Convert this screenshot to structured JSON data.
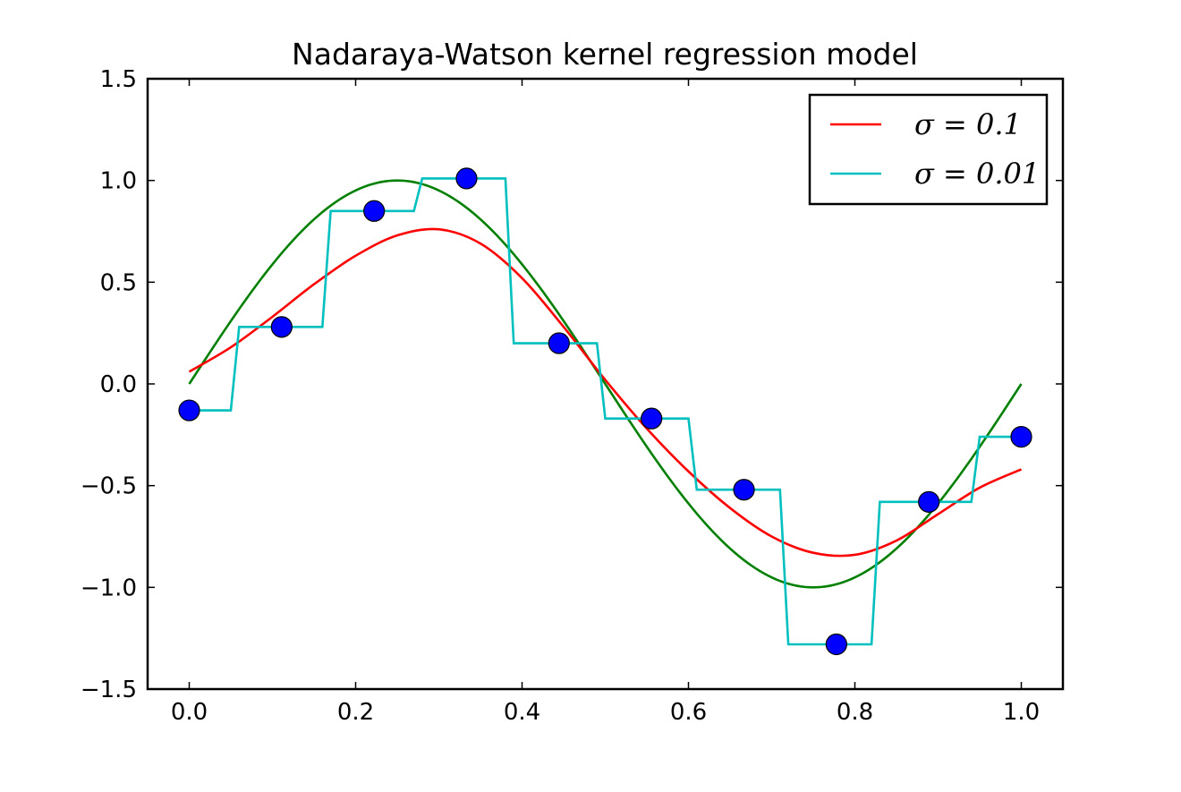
{
  "chart_data": {
    "type": "line",
    "title": "Nadaraya-Watson kernel regression model",
    "xlabel": "",
    "ylabel": "",
    "xlim": [
      -0.05,
      1.05
    ],
    "ylim": [
      -1.5,
      1.5
    ],
    "x_ticks": [
      0.0,
      0.2,
      0.4,
      0.6,
      0.8,
      1.0
    ],
    "x_tick_labels": [
      "0.0",
      "0.2",
      "0.4",
      "0.6",
      "0.8",
      "1.0"
    ],
    "y_ticks": [
      1.5,
      1.0,
      0.5,
      0.0,
      -0.5,
      -1.0,
      -1.5
    ],
    "y_tick_labels": [
      "1.5",
      "1.0",
      "0.5",
      "0.0",
      "−0.5",
      "−1.0",
      "−1.5"
    ],
    "grid": false,
    "legend_position": "top-right",
    "points": {
      "color": "#0000ff",
      "x": [
        0.0,
        0.1111,
        0.2222,
        0.3333,
        0.4444,
        0.5556,
        0.6667,
        0.7778,
        0.8889,
        1.0
      ],
      "y": [
        -0.13,
        0.28,
        0.85,
        1.01,
        0.2,
        -0.17,
        -0.52,
        -1.28,
        -0.58,
        -0.26
      ]
    },
    "series": [
      {
        "name": "σ = 0.1",
        "color": "#ff0000",
        "x": [
          0.0,
          0.05,
          0.1,
          0.15,
          0.2,
          0.25,
          0.3,
          0.35,
          0.4,
          0.45,
          0.5,
          0.55,
          0.6,
          0.65,
          0.7,
          0.75,
          0.8,
          0.85,
          0.9,
          0.95,
          1.0
        ],
        "y": [
          0.06,
          0.18,
          0.33,
          0.49,
          0.63,
          0.73,
          0.76,
          0.69,
          0.52,
          0.28,
          0.02,
          -0.22,
          -0.43,
          -0.61,
          -0.75,
          -0.83,
          -0.84,
          -0.77,
          -0.64,
          -0.51,
          -0.42
        ]
      },
      {
        "name": "σ = 0.01",
        "color": "#00bfbf",
        "x": [
          0.0,
          0.05,
          0.06,
          0.16,
          0.17,
          0.27,
          0.28,
          0.38,
          0.39,
          0.49,
          0.5,
          0.6,
          0.61,
          0.71,
          0.72,
          0.82,
          0.83,
          0.94,
          0.95,
          1.0
        ],
        "y": [
          -0.13,
          -0.13,
          0.28,
          0.28,
          0.85,
          0.85,
          1.01,
          1.01,
          0.2,
          0.2,
          -0.17,
          -0.17,
          -0.52,
          -0.52,
          -1.28,
          -1.28,
          -0.58,
          -0.58,
          -0.26,
          -0.26
        ]
      },
      {
        "color": "#008000",
        "function": "sin(2πx)",
        "x": [
          0.0,
          1.0
        ]
      }
    ]
  }
}
